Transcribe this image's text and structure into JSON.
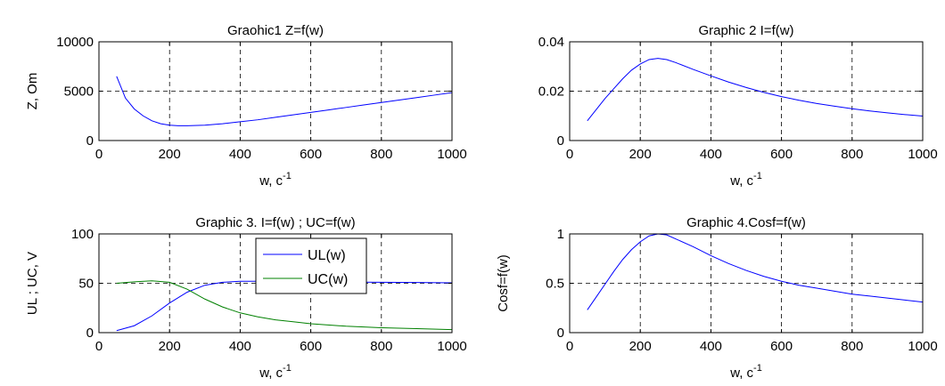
{
  "chart_data": [
    {
      "type": "line",
      "title": "Graohic1 Z=f(w)",
      "xlabel": "w, c",
      "xlabel_sup": "-1",
      "ylabel": "Z, Om",
      "xlim": [
        0,
        1000
      ],
      "ylim": [
        0,
        10000
      ],
      "xticks": [
        0,
        200,
        400,
        600,
        800,
        1000
      ],
      "yticks": [
        0,
        5000,
        10000
      ],
      "grid": true,
      "series": [
        {
          "color": "#0000ff",
          "x": [
            50,
            75,
            100,
            125,
            150,
            175,
            200,
            225,
            250,
            300,
            350,
            400,
            450,
            500,
            550,
            600,
            650,
            700,
            750,
            800,
            850,
            900,
            950,
            1000
          ],
          "y": [
            6500,
            4300,
            3200,
            2500,
            2000,
            1700,
            1550,
            1500,
            1500,
            1550,
            1700,
            1900,
            2100,
            2350,
            2600,
            2850,
            3100,
            3350,
            3600,
            3850,
            4100,
            4350,
            4600,
            4850
          ]
        }
      ]
    },
    {
      "type": "line",
      "title": "Graphic 2 I=f(w)",
      "xlabel": "w, c",
      "xlabel_sup": "-1",
      "ylabel": "",
      "xlim": [
        0,
        1000
      ],
      "ylim": [
        0,
        0.04
      ],
      "xticks": [
        0,
        200,
        400,
        600,
        800,
        1000
      ],
      "yticks": [
        0,
        0.02,
        0.04
      ],
      "grid": true,
      "series": [
        {
          "color": "#0000ff",
          "x": [
            50,
            75,
            100,
            125,
            150,
            175,
            200,
            225,
            250,
            275,
            300,
            350,
            400,
            450,
            500,
            550,
            600,
            650,
            700,
            750,
            800,
            850,
            900,
            950,
            1000
          ],
          "y": [
            0.008,
            0.0125,
            0.017,
            0.021,
            0.025,
            0.0285,
            0.031,
            0.0328,
            0.0333,
            0.0328,
            0.0316,
            0.0288,
            0.0262,
            0.0237,
            0.0215,
            0.0195,
            0.0178,
            0.0163,
            0.015,
            0.0139,
            0.0129,
            0.012,
            0.0112,
            0.0105,
            0.0099
          ]
        }
      ]
    },
    {
      "type": "line",
      "title": "Graphic 3. I=f(w) ; UC=f(w)",
      "xlabel": "w, c",
      "xlabel_sup": "-1",
      "ylabel": "UL ; UC, V",
      "xlim": [
        0,
        1000
      ],
      "ylim": [
        0,
        100
      ],
      "xticks": [
        0,
        200,
        400,
        600,
        800,
        1000
      ],
      "yticks": [
        0,
        50,
        100
      ],
      "grid": true,
      "legend": "top-center",
      "series": [
        {
          "name": "UL(w)",
          "color": "#0000ff",
          "x": [
            50,
            100,
            150,
            200,
            250,
            300,
            350,
            400,
            450,
            500,
            600,
            700,
            800,
            900,
            1000
          ],
          "y": [
            2,
            7,
            17,
            30,
            41,
            48,
            51,
            52,
            52,
            52,
            51.5,
            51.2,
            51,
            50.8,
            50.5
          ]
        },
        {
          "name": "UC(w)",
          "color": "#008000",
          "x": [
            50,
            100,
            150,
            200,
            250,
            300,
            350,
            400,
            450,
            500,
            550,
            600,
            700,
            800,
            900,
            1000
          ],
          "y": [
            50,
            51.5,
            52.5,
            51,
            44,
            34,
            26,
            20,
            16,
            13,
            11,
            9,
            6.5,
            5,
            4,
            3
          ]
        }
      ]
    },
    {
      "type": "line",
      "title": "Graphic 4.Cosf=f(w)",
      "xlabel": "w, c",
      "xlabel_sup": "-1",
      "ylabel": "Cosf=f(w)",
      "xlim": [
        0,
        1000
      ],
      "ylim": [
        0,
        1
      ],
      "xticks": [
        0,
        200,
        400,
        600,
        800,
        1000
      ],
      "yticks": [
        0,
        0.5,
        1
      ],
      "grid": true,
      "series": [
        {
          "color": "#0000ff",
          "x": [
            50,
            75,
            100,
            125,
            150,
            175,
            200,
            225,
            250,
            275,
            300,
            350,
            400,
            450,
            500,
            550,
            600,
            650,
            700,
            750,
            800,
            850,
            900,
            950,
            1000
          ],
          "y": [
            0.23,
            0.36,
            0.49,
            0.62,
            0.74,
            0.84,
            0.92,
            0.98,
            1.0,
            0.99,
            0.95,
            0.87,
            0.78,
            0.7,
            0.63,
            0.57,
            0.52,
            0.48,
            0.45,
            0.42,
            0.39,
            0.37,
            0.35,
            0.33,
            0.31
          ]
        }
      ]
    }
  ]
}
